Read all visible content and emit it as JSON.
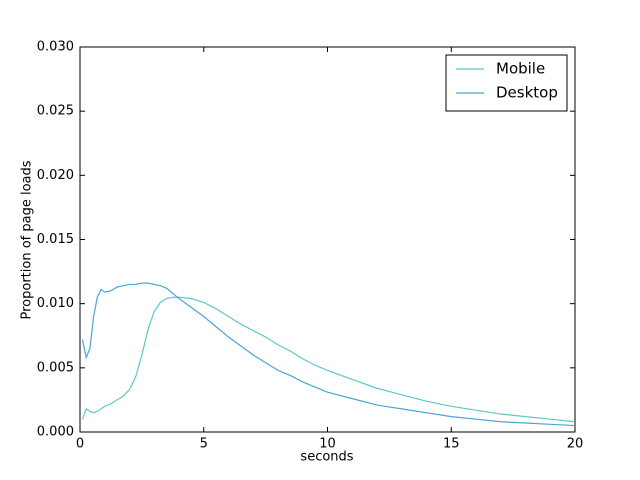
{
  "chart_data": {
    "type": "line",
    "xlabel": "seconds",
    "ylabel": "Proportion of page loads",
    "x": [
      0.1,
      0.25,
      0.4,
      0.55,
      0.7,
      0.85,
      1,
      1.25,
      1.5,
      1.75,
      2,
      2.25,
      2.5,
      2.75,
      3,
      3.25,
      3.5,
      3.75,
      4,
      4.5,
      5,
      5.5,
      6,
      6.5,
      7,
      7.5,
      8,
      8.5,
      9,
      9.5,
      10,
      11,
      12,
      13,
      14,
      15,
      16,
      17,
      18,
      19,
      20
    ],
    "series": [
      {
        "name": "Mobile",
        "color": "#5cc8c8",
        "values": [
          0.001,
          0.0018,
          0.0016,
          0.0015,
          0.0016,
          0.0018,
          0.002,
          0.0022,
          0.0025,
          0.0028,
          0.0033,
          0.0043,
          0.006,
          0.008,
          0.0094,
          0.0101,
          0.0104,
          0.0105,
          0.0105,
          0.0104,
          0.0101,
          0.0096,
          0.009,
          0.0084,
          0.0079,
          0.0074,
          0.0068,
          0.0063,
          0.0057,
          0.0052,
          0.0048,
          0.0041,
          0.0034,
          0.0029,
          0.0024,
          0.002,
          0.0017,
          0.0014,
          0.0012,
          0.001,
          0.0008
        ]
      },
      {
        "name": "Desktop",
        "color": "#4aa6d8",
        "values": [
          0.0072,
          0.0058,
          0.0065,
          0.009,
          0.0105,
          0.0111,
          0.0109,
          0.011,
          0.0113,
          0.0114,
          0.0115,
          0.0115,
          0.0116,
          0.0116,
          0.0115,
          0.0114,
          0.0112,
          0.0108,
          0.0104,
          0.0097,
          0.009,
          0.0082,
          0.0074,
          0.0067,
          0.006,
          0.0054,
          0.0048,
          0.0044,
          0.0039,
          0.0035,
          0.0031,
          0.0026,
          0.0021,
          0.0018,
          0.0015,
          0.0012,
          0.001,
          0.0008,
          0.0007,
          0.0006,
          0.0005
        ]
      }
    ],
    "xlim": [
      0,
      20
    ],
    "xticks": [
      0,
      5,
      10,
      15,
      20
    ],
    "ylim": [
      0,
      0.03
    ],
    "yticks": [
      {
        "value": 0,
        "label": "0.000"
      },
      0.005,
      {
        "value": 0.01,
        "label": "0.010"
      },
      0.015,
      {
        "value": 0.02,
        "label": "0.020"
      },
      0.025,
      {
        "value": 0.03,
        "label": "0.030"
      }
    ],
    "grid": false,
    "legend": "upper right"
  }
}
